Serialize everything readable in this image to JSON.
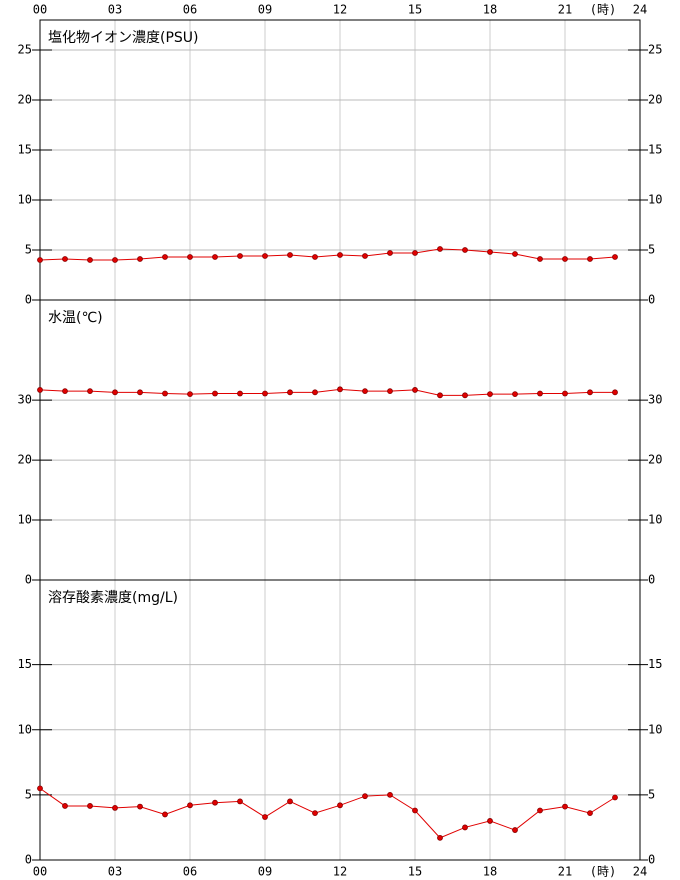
{
  "chart_data": [
    {
      "type": "line",
      "title": "塩化物イオン濃度(PSU)",
      "x_unit": "(時)",
      "x": [
        0,
        1,
        2,
        3,
        4,
        5,
        6,
        7,
        8,
        9,
        10,
        11,
        12,
        13,
        14,
        15,
        16,
        17,
        18,
        19,
        20,
        21,
        22,
        23
      ],
      "values": [
        4.0,
        4.1,
        4.0,
        4.0,
        4.1,
        4.3,
        4.3,
        4.3,
        4.4,
        4.4,
        4.5,
        4.3,
        4.5,
        4.4,
        4.7,
        4.7,
        5.1,
        5.0,
        4.8,
        4.6,
        4.1,
        4.1,
        4.1,
        4.3
      ],
      "color": "#e00000",
      "xlim": [
        0,
        24
      ],
      "xticks": [
        {
          "value": 0,
          "label": "00"
        },
        {
          "value": 3,
          "label": "03"
        },
        {
          "value": 6,
          "label": "06"
        },
        {
          "value": 9,
          "label": "09"
        },
        12,
        15,
        18,
        21,
        24
      ],
      "ylim": [
        0,
        28
      ],
      "yticks": [
        0,
        5,
        10,
        15,
        20,
        25
      ],
      "grid": true
    },
    {
      "type": "line",
      "title": "水温(℃)",
      "x": [
        0,
        1,
        2,
        3,
        4,
        5,
        6,
        7,
        8,
        9,
        10,
        11,
        12,
        13,
        14,
        15,
        16,
        17,
        18,
        19,
        20,
        21,
        22,
        23
      ],
      "values": [
        31.7,
        31.5,
        31.5,
        31.3,
        31.3,
        31.1,
        31.0,
        31.1,
        31.1,
        31.1,
        31.3,
        31.3,
        31.8,
        31.5,
        31.5,
        31.7,
        30.8,
        30.8,
        31.0,
        31.0,
        31.1,
        31.1,
        31.3,
        31.3
      ],
      "color": "#e00000",
      "xlim": [
        0,
        24
      ],
      "ylim": [
        0,
        46.7
      ],
      "yticks": [
        0,
        10,
        20,
        30
      ],
      "grid": true
    },
    {
      "type": "line",
      "title": "溶存酸素濃度(mg/L)",
      "x_unit": "(時)",
      "x": [
        0,
        1,
        2,
        3,
        4,
        5,
        6,
        7,
        8,
        9,
        10,
        11,
        12,
        13,
        14,
        15,
        16,
        17,
        18,
        19,
        20,
        21,
        22,
        23
      ],
      "values": [
        5.5,
        4.15,
        4.15,
        4.0,
        4.1,
        3.5,
        4.2,
        4.4,
        4.5,
        3.3,
        4.5,
        3.6,
        4.2,
        4.9,
        5.0,
        3.8,
        1.7,
        2.5,
        3.0,
        2.3,
        3.8,
        4.1,
        3.6,
        4.8
      ],
      "color": "#e00000",
      "xlim": [
        0,
        24
      ],
      "xticks": [
        {
          "value": 0,
          "label": "00"
        },
        {
          "value": 3,
          "label": "03"
        },
        {
          "value": 6,
          "label": "06"
        },
        {
          "value": 9,
          "label": "09"
        },
        12,
        15,
        18,
        21,
        24
      ],
      "ylim": [
        0,
        21.5
      ],
      "yticks": [
        0,
        5,
        10,
        15
      ],
      "grid": true
    }
  ]
}
